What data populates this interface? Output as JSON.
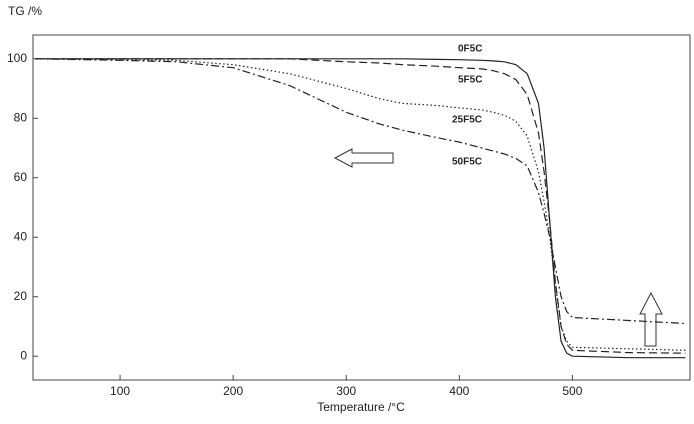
{
  "chart_data": {
    "type": "line",
    "y_label": "TG /%",
    "x_label": "Temperature /°C",
    "xlim": [
      23,
      604
    ],
    "ylim": [
      -8,
      108
    ],
    "xticks": [
      100,
      200,
      300,
      400,
      500
    ],
    "yticks": [
      0,
      20,
      40,
      60,
      80,
      100
    ],
    "x": [
      25,
      100,
      150,
      200,
      250,
      300,
      330,
      350,
      380,
      400,
      420,
      430,
      440,
      450,
      460,
      470,
      475,
      480,
      485,
      490,
      495,
      500,
      550,
      600
    ],
    "series": [
      {
        "name": "0F5C",
        "color": "#222222",
        "linestyle": "solid",
        "values": [
          100,
          100,
          100,
          100,
          100,
          100,
          100,
          100,
          99.8,
          99.7,
          99.5,
          99.3,
          99,
          98,
          95,
          85,
          70,
          45,
          20,
          5,
          1,
          0,
          -0.5,
          -0.5
        ]
      },
      {
        "name": "5F5C",
        "color": "#222222",
        "linestyle": "dashed",
        "values": [
          100,
          100,
          100,
          100,
          100,
          99,
          98.6,
          98,
          97.5,
          97,
          96.6,
          96,
          95,
          93,
          88,
          75,
          62,
          45,
          25,
          10,
          4,
          2,
          1.2,
          1
        ]
      },
      {
        "name": "25F5C",
        "color": "#222222",
        "linestyle": "dotted",
        "values": [
          100,
          99.7,
          99.5,
          98,
          95,
          90,
          86.5,
          85,
          84.3,
          83.5,
          82.8,
          82,
          81,
          79,
          74,
          62,
          52,
          40,
          24,
          10,
          5,
          3,
          2.5,
          2
        ]
      },
      {
        "name": "50F5C",
        "color": "#222222",
        "linestyle": "dashdot",
        "values": [
          100,
          99.5,
          99,
          97,
          91,
          82,
          78,
          76,
          73.5,
          72,
          70,
          69,
          68,
          66.5,
          64,
          55,
          48,
          40,
          30,
          20,
          15,
          13,
          12,
          11
        ]
      }
    ]
  }
}
